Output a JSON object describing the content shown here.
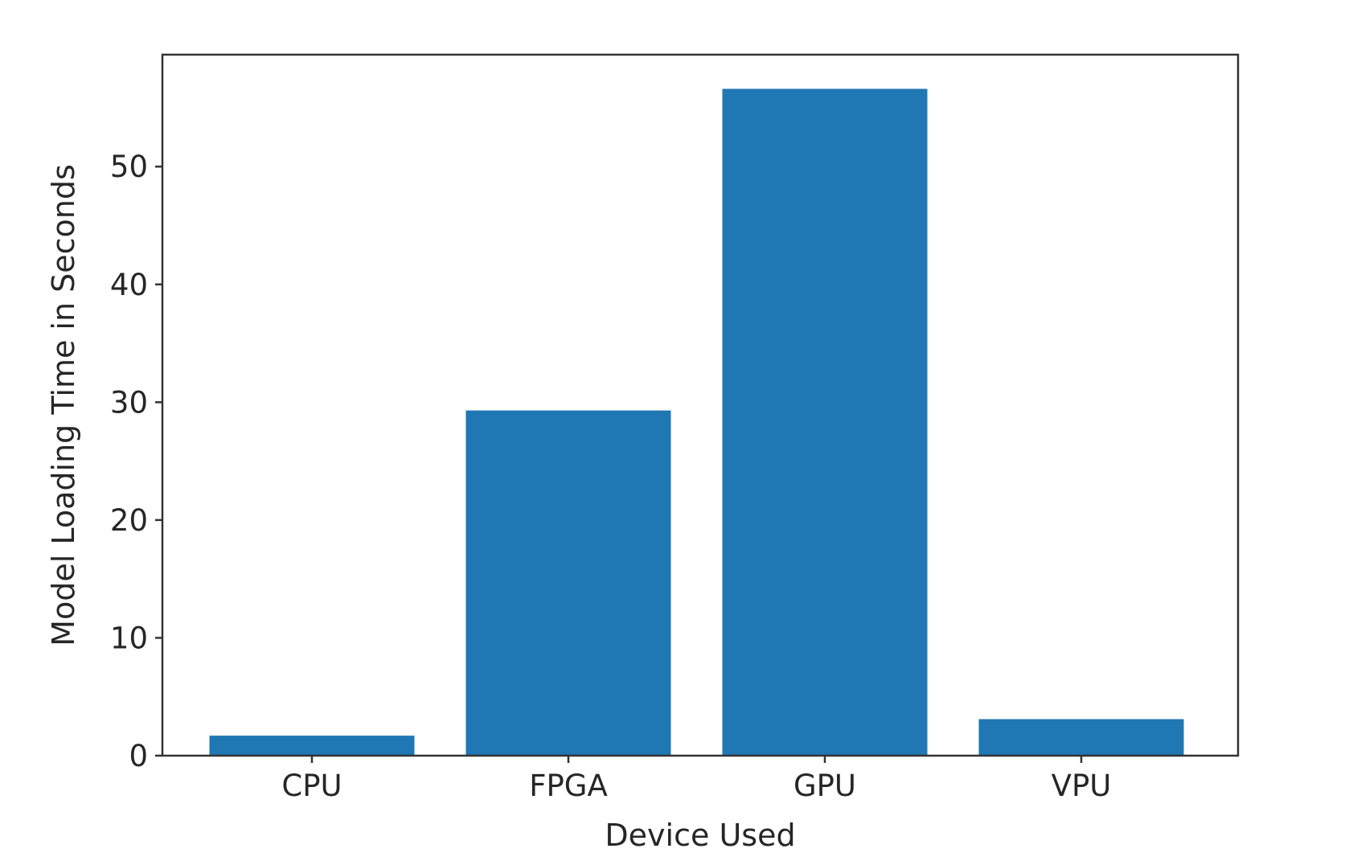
{
  "chart_data": {
    "type": "bar",
    "title": "",
    "xlabel": "Device Used",
    "ylabel": "Model Loading Time in Seconds",
    "categories": [
      "CPU",
      "FPGA",
      "GPU",
      "VPU"
    ],
    "values": [
      1.7,
      29.3,
      56.6,
      3.1
    ],
    "ylim": [
      0,
      59.5
    ],
    "yticks": [
      0,
      10,
      20,
      30,
      40,
      50
    ],
    "bar_color": "#1f77b4",
    "grid": false,
    "legend": "none"
  }
}
